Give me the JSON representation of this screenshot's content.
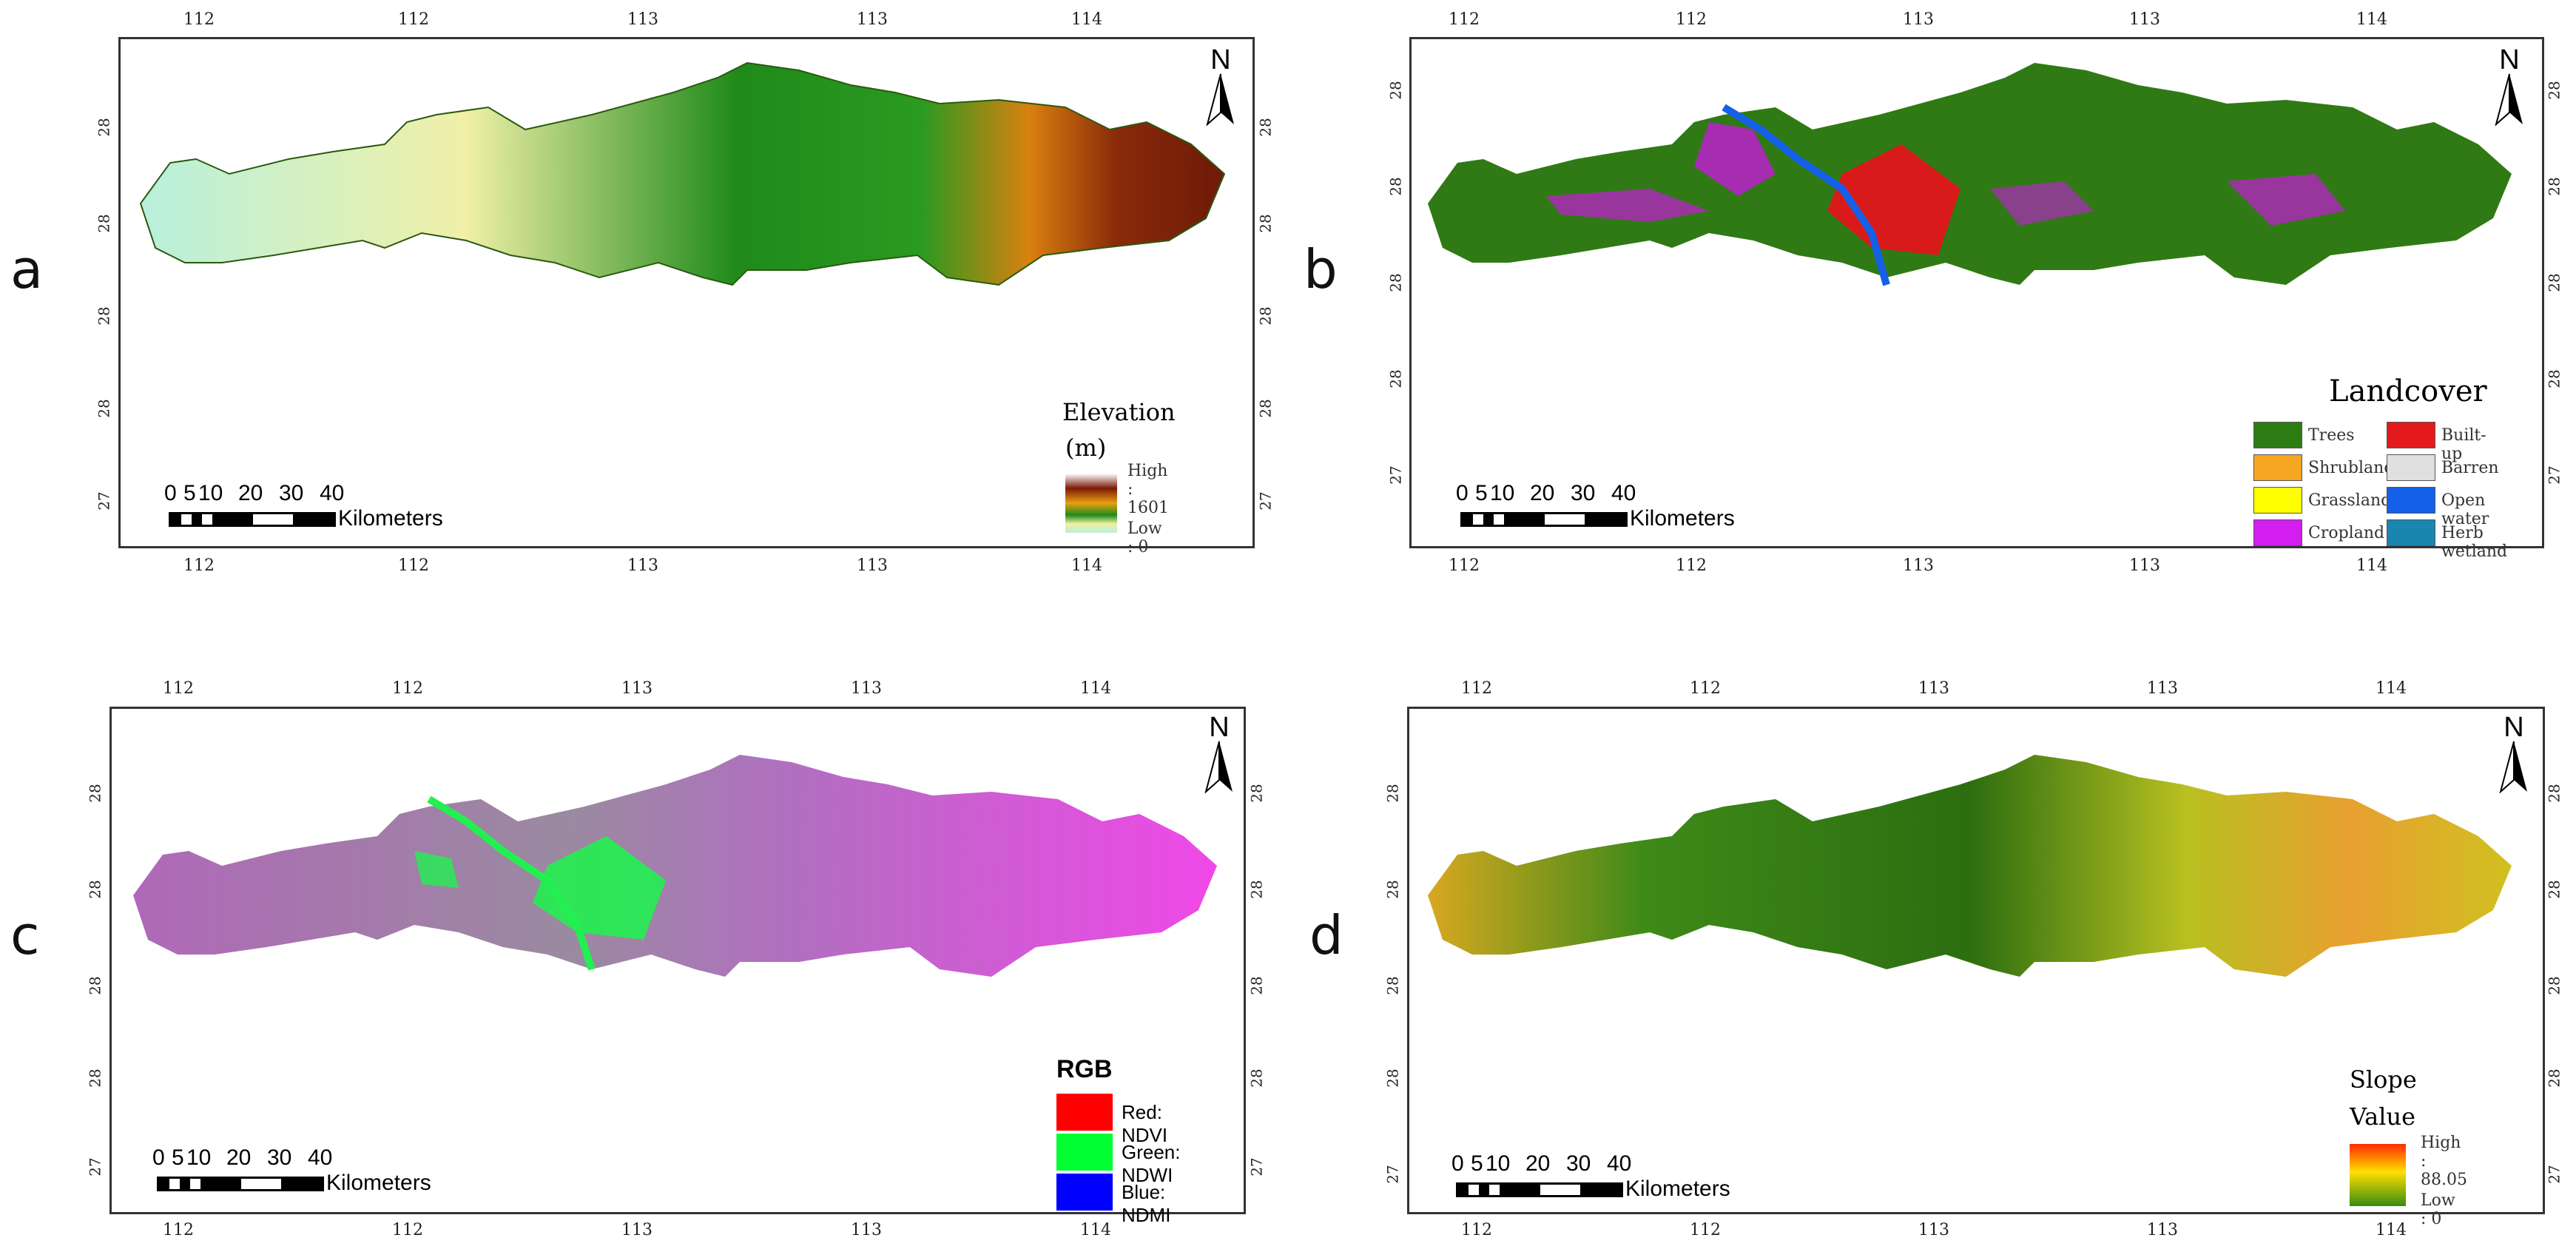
{
  "panels": [
    {
      "letter": "a",
      "lon_labels": [
        "112",
        "112",
        "113",
        "113",
        "114"
      ],
      "lat_labels": [
        "28",
        "28",
        "28",
        "28",
        "27"
      ],
      "north": "N",
      "scale": {
        "ticks": [
          "0",
          "5",
          "10",
          "20",
          "30",
          "40"
        ],
        "unit": "Kilometers"
      },
      "legend": {
        "title_line1": "Elevation",
        "title_line2": "(m)",
        "high": "High : 1601",
        "low": "Low : 0"
      }
    },
    {
      "letter": "b",
      "lon_labels": [
        "112",
        "112",
        "113",
        "113",
        "114"
      ],
      "lat_labels": [
        "28",
        "28",
        "28",
        "28",
        "27"
      ],
      "north": "N",
      "scale": {
        "ticks": [
          "0",
          "5",
          "10",
          "20",
          "30",
          "40"
        ],
        "unit": "Kilometers"
      },
      "legend": {
        "title": "Landcover",
        "classes": [
          {
            "label": "Trees",
            "color": "#2e7d14"
          },
          {
            "label": "Built-up",
            "color": "#e31a1c"
          },
          {
            "label": "Shrubland",
            "color": "#f5a623"
          },
          {
            "label": "Barren",
            "color": "#e0e0e0"
          },
          {
            "label": "Grassland",
            "color": "#ffff00"
          },
          {
            "label": "Open water",
            "color": "#1560e8"
          },
          {
            "label": "Cropland",
            "color": "#d21ef0"
          },
          {
            "label": "Herb wetland",
            "color": "#1a86b0"
          }
        ]
      }
    },
    {
      "letter": "c",
      "lon_labels": [
        "112",
        "112",
        "113",
        "113",
        "114"
      ],
      "lat_labels": [
        "28",
        "28",
        "28",
        "28",
        "27"
      ],
      "north": "N",
      "scale": {
        "ticks": [
          "0",
          "5",
          "10",
          "20",
          "30",
          "40"
        ],
        "unit": "Kilometers"
      },
      "legend": {
        "title": "RGB",
        "items": [
          {
            "label": "Red:  NDVI",
            "color": "#ff0000"
          },
          {
            "label": "Green: NDWI",
            "color": "#00ff33"
          },
          {
            "label": "Blue:  NDMI",
            "color": "#0000ff"
          }
        ]
      }
    },
    {
      "letter": "d",
      "lon_labels": [
        "112",
        "112",
        "113",
        "113",
        "114"
      ],
      "lat_labels": [
        "28",
        "28",
        "28",
        "28",
        "27"
      ],
      "north": "N",
      "scale": {
        "ticks": [
          "0",
          "5",
          "10",
          "20",
          "30",
          "40"
        ],
        "unit": "Kilometers"
      },
      "legend": {
        "title_line1": "Slope",
        "title_line2": "Value",
        "high": "High : 88.05",
        "low": "Low : 0"
      }
    }
  ]
}
